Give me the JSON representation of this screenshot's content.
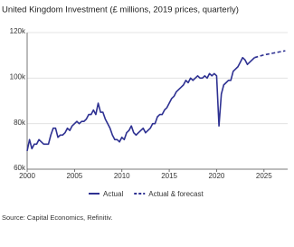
{
  "chart_data": {
    "type": "line",
    "title": "United Kingdom Investment (£ millions, 2019 prices, quarterly)",
    "source": "Source: Capital Economics, Refinitiv.",
    "x": [
      2000,
      2000.25,
      2000.5,
      2000.75,
      2001,
      2001.25,
      2001.5,
      2001.75,
      2002,
      2002.25,
      2002.5,
      2002.75,
      2003,
      2003.25,
      2003.5,
      2003.75,
      2004,
      2004.25,
      2004.5,
      2004.75,
      2005,
      2005.25,
      2005.5,
      2005.75,
      2006,
      2006.25,
      2006.5,
      2006.75,
      2007,
      2007.25,
      2007.5,
      2007.75,
      2008,
      2008.25,
      2008.5,
      2008.75,
      2009,
      2009.25,
      2009.5,
      2009.75,
      2010,
      2010.25,
      2010.5,
      2010.75,
      2011,
      2011.25,
      2011.5,
      2011.75,
      2012,
      2012.25,
      2012.5,
      2012.75,
      2013,
      2013.25,
      2013.5,
      2013.75,
      2014,
      2014.25,
      2014.5,
      2014.75,
      2015,
      2015.25,
      2015.5,
      2015.75,
      2016,
      2016.25,
      2016.5,
      2016.75,
      2017,
      2017.25,
      2017.5,
      2017.75,
      2018,
      2018.25,
      2018.5,
      2018.75,
      2019,
      2019.25,
      2019.5,
      2019.75,
      2020,
      2020.25,
      2020.5,
      2020.75,
      2021,
      2021.25,
      2021.5,
      2021.75,
      2022,
      2022.25,
      2022.5,
      2022.75,
      2023,
      2023.25,
      2023.5,
      2023.75,
      2024,
      2024.25,
      2024.5,
      2024.75,
      2025,
      2025.25,
      2025.5,
      2025.75,
      2026,
      2026.25,
      2026.5,
      2026.75,
      2027,
      2027.25
    ],
    "series": [
      {
        "name": "Actual",
        "color": "#2e3192",
        "dash": false,
        "values": [
          68000,
          73000,
          69000,
          71000,
          71000,
          73000,
          72000,
          71000,
          71000,
          71000,
          75000,
          78000,
          78000,
          74000,
          75000,
          75000,
          76000,
          78000,
          77000,
          79000,
          80000,
          81000,
          80000,
          81000,
          81000,
          82000,
          84000,
          84000,
          86000,
          84000,
          89000,
          85000,
          85000,
          82000,
          80000,
          78000,
          75000,
          73000,
          73000,
          72000,
          74000,
          73000,
          76000,
          77000,
          79000,
          76000,
          75000,
          76000,
          77000,
          78000,
          76000,
          77000,
          78000,
          80000,
          80000,
          83000,
          84000,
          84000,
          86000,
          87000,
          89000,
          91000,
          92000,
          94000,
          95000,
          96000,
          97000,
          99000,
          98000,
          100000,
          99000,
          100000,
          101000,
          100000,
          100000,
          101000,
          100000,
          102000,
          101000,
          102000,
          101000,
          79000,
          93000,
          97000,
          98000,
          99000,
          99000,
          103000,
          104000,
          105000,
          107000,
          109000,
          108000,
          106000,
          107000,
          108000,
          109000,
          null,
          null,
          null,
          null,
          null,
          null,
          null,
          null,
          null,
          null,
          null,
          null,
          null
        ]
      },
      {
        "name": "Actual & forecast",
        "color": "#2e3192",
        "dash": true,
        "values": [
          null,
          null,
          null,
          null,
          null,
          null,
          null,
          null,
          null,
          null,
          null,
          null,
          null,
          null,
          null,
          null,
          null,
          null,
          null,
          null,
          null,
          null,
          null,
          null,
          null,
          null,
          null,
          null,
          null,
          null,
          null,
          null,
          null,
          null,
          null,
          null,
          null,
          null,
          null,
          null,
          null,
          null,
          null,
          null,
          null,
          null,
          null,
          null,
          null,
          null,
          null,
          null,
          null,
          null,
          null,
          null,
          null,
          null,
          null,
          null,
          null,
          null,
          null,
          null,
          null,
          null,
          null,
          null,
          null,
          null,
          null,
          null,
          null,
          null,
          null,
          null,
          null,
          null,
          null,
          null,
          null,
          null,
          null,
          null,
          null,
          null,
          null,
          null,
          null,
          null,
          null,
          null,
          null,
          null,
          null,
          null,
          109000,
          109300,
          109600,
          109900,
          110200,
          110400,
          110600,
          110800,
          111000,
          111200,
          111400,
          111600,
          111800,
          112000
        ]
      }
    ],
    "xlim": [
      2000,
      2027.5
    ],
    "xticks": [
      2000,
      2005,
      2010,
      2015,
      2020,
      2025
    ],
    "ylim": [
      60000,
      120000
    ],
    "yticks": [
      {
        "value": 60000,
        "label": "60k"
      },
      {
        "value": 80000,
        "label": "80k"
      },
      {
        "value": 100000,
        "label": "100k"
      },
      {
        "value": 120000,
        "label": "120k"
      }
    ],
    "grid": true
  }
}
